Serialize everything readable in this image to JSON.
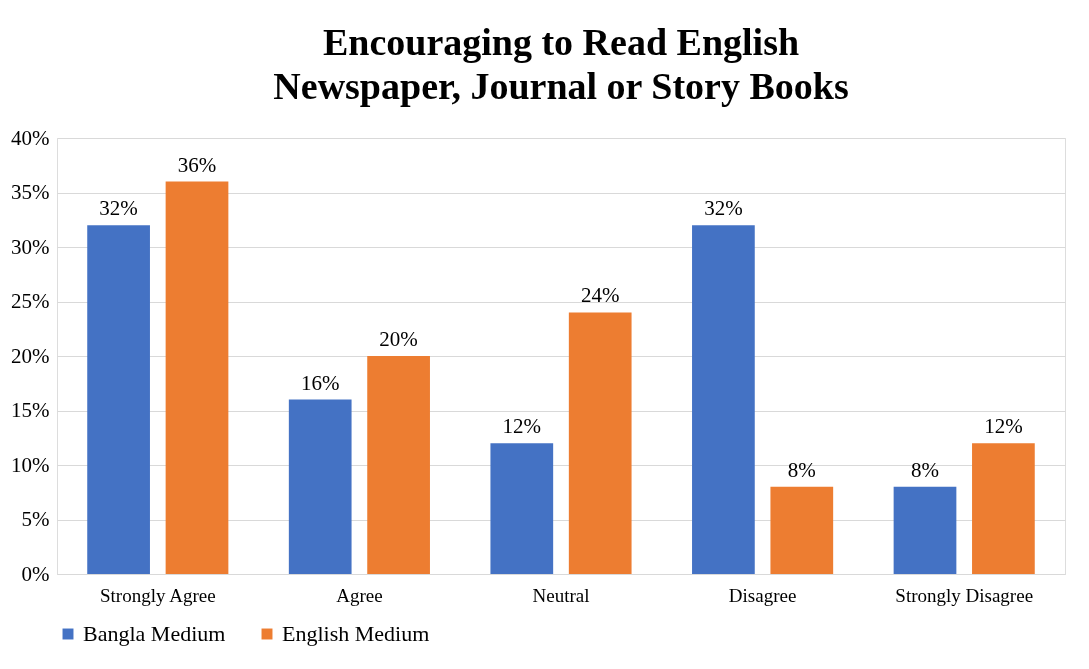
{
  "chart_data": {
    "type": "bar",
    "title": "Encouraging to Read English Newspaper, Journal or Story Books",
    "categories": [
      "Strongly Agree",
      "Agree",
      "Neutral",
      "Disagree",
      "Strongly Disagree"
    ],
    "series": [
      {
        "name": "Bangla Medium",
        "color": "#4472c4",
        "values": [
          32,
          16,
          12,
          32,
          8
        ],
        "value_labels": [
          "32%",
          "16%",
          "12%",
          "32%",
          "8%"
        ]
      },
      {
        "name": "English Medium",
        "color": "#ed7d31",
        "values": [
          36,
          20,
          24,
          8,
          12
        ],
        "value_labels": [
          "36%",
          "20%",
          "24%",
          "8%",
          "12%"
        ]
      }
    ],
    "ylim": [
      0,
      40
    ],
    "yticks": [
      {
        "value": 0,
        "label": "0%"
      },
      {
        "value": 5,
        "label": "5%"
      },
      {
        "value": 10,
        "label": "10%"
      },
      {
        "value": 15,
        "label": "15%"
      },
      {
        "value": 20,
        "label": "20%"
      },
      {
        "value": 25,
        "label": "25%"
      },
      {
        "value": 30,
        "label": "30%"
      },
      {
        "value": 35,
        "label": "35%"
      },
      {
        "value": 40,
        "label": "40%"
      }
    ],
    "grid": "y",
    "legend": "bottom"
  }
}
